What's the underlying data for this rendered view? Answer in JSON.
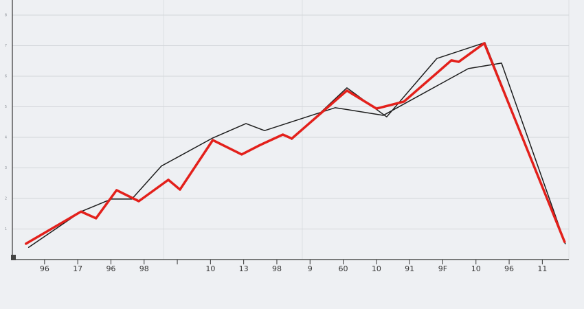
{
  "chart_data": {
    "type": "line",
    "categories": [
      "96",
      "17",
      "96",
      "98",
      null,
      "10",
      "13",
      "98",
      "9",
      "60",
      "10",
      "91",
      "9F",
      "10",
      "96",
      "11"
    ],
    "xlim": [
      -0.97,
      15.8
    ],
    "ylim": [
      0,
      8
    ],
    "yticks": [
      1,
      2,
      3,
      4,
      5,
      6,
      7,
      8
    ],
    "grid": true,
    "series": [
      {
        "color": "#1c1c1c",
        "width": 1.5,
        "x": [
          -0.48,
          1.1,
          2.01,
          2.63,
          3.52,
          5.07,
          6.07,
          6.63,
          8.76,
          10.21,
          12.77,
          13.77,
          15.69
        ],
        "values": [
          0.4,
          1.57,
          1.98,
          1.98,
          3.06,
          3.98,
          4.45,
          4.22,
          4.97,
          4.72,
          6.25,
          6.43,
          0.52
        ]
      },
      {
        "color": "#1c1c1c",
        "width": 1.5,
        "x": [
          7.45,
          9.11,
          10.31,
          11.82,
          13.27,
          15.69
        ],
        "values": [
          3.93,
          5.62,
          4.67,
          6.58,
          7.1,
          0.52
        ]
      },
      {
        "color": "#e3201b",
        "width": 3.5,
        "x": [
          -0.56,
          1.1,
          1.55,
          2.17,
          2.84,
          3.73,
          4.08,
          5.07,
          5.94,
          6.46,
          7.18,
          7.45,
          9.11,
          10.0,
          10.83,
          12.26,
          12.48,
          13.25,
          15.67
        ],
        "values": [
          0.52,
          1.57,
          1.35,
          2.27,
          1.91,
          2.61,
          2.29,
          3.91,
          3.44,
          3.73,
          4.09,
          3.96,
          5.53,
          4.94,
          5.17,
          6.52,
          6.47,
          7.08,
          0.58
        ]
      }
    ]
  }
}
